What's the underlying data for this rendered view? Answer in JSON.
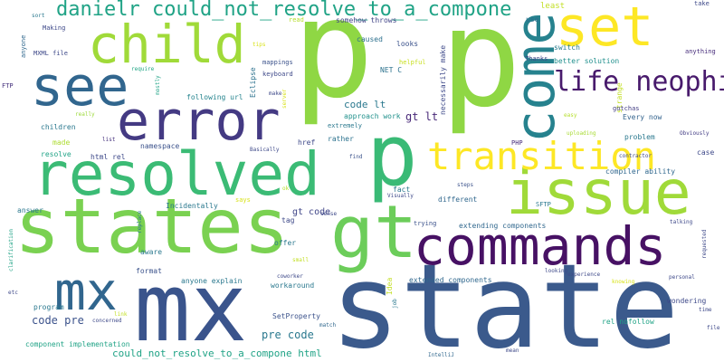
{
  "words": [
    {
      "id": "p1",
      "text": "p",
      "color": "#8fd744"
    },
    {
      "id": "p2",
      "text": "p",
      "color": "#8fd744"
    },
    {
      "id": "p3",
      "text": "p",
      "color": "#3aba76"
    },
    {
      "id": "state",
      "text": "state",
      "color": "#3b5a8c"
    },
    {
      "id": "mx_big",
      "text": "mx",
      "color": "#3a548c"
    },
    {
      "id": "states",
      "text": "states",
      "color": "#7ad151"
    },
    {
      "id": "gt_big",
      "text": "gt",
      "color": "#6ccd5a"
    },
    {
      "id": "commands",
      "text": "commands",
      "color": "#471164"
    },
    {
      "id": "resolved",
      "text": "resolved",
      "color": "#3bbb75"
    },
    {
      "id": "issue",
      "text": "issue",
      "color": "#a0da39"
    },
    {
      "id": "error",
      "text": "error",
      "color": "#443a83"
    },
    {
      "id": "see",
      "text": "see",
      "color": "#31668e"
    },
    {
      "id": "child",
      "text": "child",
      "color": "#a0da39"
    },
    {
      "id": "set",
      "text": "set",
      "color": "#fde725"
    },
    {
      "id": "come",
      "text": "come",
      "color": "#26828e"
    },
    {
      "id": "transition",
      "text": "transition",
      "color": "#fde725"
    },
    {
      "id": "life_neophi",
      "text": "life neophi",
      "color": "#481a6c"
    },
    {
      "id": "danielr",
      "text": "danielr could_not_resolve_to_a_compone",
      "color": "#20a386"
    },
    {
      "id": "mx_mid",
      "text": "mx",
      "color": "#31668e"
    },
    {
      "id": "code_lt",
      "text": "code lt",
      "color": "#2a788e"
    },
    {
      "id": "gt_lt",
      "text": "gt lt",
      "color": "#482878"
    },
    {
      "id": "gt_code",
      "text": "gt code",
      "color": "#404688"
    },
    {
      "id": "pre_code",
      "text": "pre code",
      "color": "#2a788e"
    },
    {
      "id": "code_pre",
      "text": "code pre",
      "color": "#3b528b"
    },
    {
      "id": "could_html",
      "text": "could_not_resolve_to_a_compone html",
      "color": "#20a386"
    },
    {
      "id": "kw_least",
      "text": "least",
      "color": "#c2df23"
    },
    {
      "id": "kw_use",
      "text": "use",
      "color": "#2e6e8e"
    },
    {
      "id": "kw_take",
      "text": "take",
      "color": "#3e4989"
    },
    {
      "id": "kw_anything",
      "text": "anything",
      "color": "#472d7b"
    },
    {
      "id": "kw_sort",
      "text": "sort",
      "color": "#2a788e"
    },
    {
      "id": "kw_anyone",
      "text": "anyone",
      "color": "#31688e"
    },
    {
      "id": "kw_making",
      "text": "Making",
      "color": "#3e4989"
    },
    {
      "id": "kw_mxml",
      "text": "MXML file",
      "color": "#3e4989"
    },
    {
      "id": "kw_ftp",
      "text": "FTP",
      "color": "#46327e"
    },
    {
      "id": "kw_read",
      "text": "read",
      "color": "#b5de2b"
    },
    {
      "id": "kw_somehow",
      "text": "somehow throws",
      "color": "#414487"
    },
    {
      "id": "kw_caused",
      "text": "caused",
      "color": "#2d708e"
    },
    {
      "id": "kw_looks",
      "text": "looks",
      "color": "#3b528b"
    },
    {
      "id": "kw_switch",
      "text": "switch",
      "color": "#287c8e"
    },
    {
      "id": "kw_thanks",
      "text": "Thanks",
      "color": "#3f4889"
    },
    {
      "id": "kw_better",
      "text": "better solution",
      "color": "#21908d"
    },
    {
      "id": "kw_tips",
      "text": "tips",
      "color": "#d8e219"
    },
    {
      "id": "kw_mappings",
      "text": "mappings",
      "color": "#3b528b"
    },
    {
      "id": "kw_keyboard",
      "text": "keyboard",
      "color": "#3e4989"
    },
    {
      "id": "kw_helpful",
      "text": "helpful",
      "color": "#c8e020"
    },
    {
      "id": "kw_netc",
      "text": "NET C",
      "color": "#2c728e"
    },
    {
      "id": "kw_require",
      "text": "require",
      "color": "#21a685"
    },
    {
      "id": "kw_following",
      "text": "following url",
      "color": "#25848e"
    },
    {
      "id": "kw_make",
      "text": "make",
      "color": "#3e4989"
    },
    {
      "id": "kw_eclipse",
      "text": "Eclipse",
      "color": "#2c728e"
    },
    {
      "id": "kw_server",
      "text": "server",
      "color": "#d8e219"
    },
    {
      "id": "kw_necessarily",
      "text": "necessarily make",
      "color": "#3e4989"
    },
    {
      "id": "kw_strange",
      "text": "strange",
      "color": "#c2df23"
    },
    {
      "id": "kw_gotchas",
      "text": "gotchas",
      "color": "#433d84"
    },
    {
      "id": "kw_easy",
      "text": "easy",
      "color": "#b5de2b"
    },
    {
      "id": "kw_everynow",
      "text": "Every now",
      "color": "#33638d"
    },
    {
      "id": "kw_obviously",
      "text": "Obviously",
      "color": "#433d84"
    },
    {
      "id": "kw_mostly",
      "text": "mostly",
      "color": "#20a386"
    },
    {
      "id": "kw_really",
      "text": "really",
      "color": "#9dd93b"
    },
    {
      "id": "kw_extremely",
      "text": "extremely",
      "color": "#2a788e"
    },
    {
      "id": "kw_approach",
      "text": "approach work",
      "color": "#21918c"
    },
    {
      "id": "kw_children",
      "text": "children",
      "color": "#2a788e"
    },
    {
      "id": "kw_list",
      "text": "list",
      "color": "#46327e"
    },
    {
      "id": "kw_namespace",
      "text": "namespace",
      "color": "#3b528b"
    },
    {
      "id": "kw_rather",
      "text": "rather",
      "color": "#2c728e"
    },
    {
      "id": "kw_uploading",
      "text": "uploading",
      "color": "#a8db34"
    },
    {
      "id": "kw_problem",
      "text": "problem",
      "color": "#2a788e"
    },
    {
      "id": "kw_php",
      "text": "PHP",
      "color": "#472d7b"
    },
    {
      "id": "kw_made",
      "text": "made",
      "color": "#addc30"
    },
    {
      "id": "kw_basically",
      "text": "Basically",
      "color": "#3e4989"
    },
    {
      "id": "kw_href",
      "text": "href",
      "color": "#3e4989"
    },
    {
      "id": "kw_contractor",
      "text": "contractor",
      "color": "#3e4989"
    },
    {
      "id": "kw_case",
      "text": "case",
      "color": "#3e4989"
    },
    {
      "id": "kw_resolve",
      "text": "resolve",
      "color": "#20a386"
    },
    {
      "id": "kw_htmlrel",
      "text": "html rel",
      "color": "#3e4989"
    },
    {
      "id": "kw_find",
      "text": "find",
      "color": "#3b528b"
    },
    {
      "id": "kw_fact",
      "text": "fact",
      "color": "#2a788e"
    },
    {
      "id": "kw_compiler",
      "text": "compiler ability",
      "color": "#31688e"
    },
    {
      "id": "kw_steps",
      "text": "steps",
      "color": "#3b528b"
    },
    {
      "id": "kw_visually",
      "text": "Visually",
      "color": "#3e4989"
    },
    {
      "id": "kw_different",
      "text": "different",
      "color": "#31688e"
    },
    {
      "id": "kw_says",
      "text": "says",
      "color": "#d8e219"
    },
    {
      "id": "kw_ok",
      "text": "ok",
      "color": "#b5de2b"
    },
    {
      "id": "kw_incidentally",
      "text": "Incidentally",
      "color": "#2a788e"
    },
    {
      "id": "kw_answer",
      "text": "answer",
      "color": "#2a788e"
    },
    {
      "id": "kw_replace",
      "text": "replace",
      "color": "#2a788e"
    },
    {
      "id": "kw_sense",
      "text": "sense",
      "color": "#3e4989"
    },
    {
      "id": "kw_tag",
      "text": "tag",
      "color": "#3e4989"
    },
    {
      "id": "kw_sftp",
      "text": "SFTP",
      "color": "#2a788e"
    },
    {
      "id": "kw_trying",
      "text": "trying",
      "color": "#3b528b"
    },
    {
      "id": "kw_extending",
      "text": "extending components",
      "color": "#31688e"
    },
    {
      "id": "kw_talking",
      "text": "talking",
      "color": "#3e4989"
    },
    {
      "id": "kw_requested",
      "text": "requested",
      "color": "#3e4989"
    },
    {
      "id": "kw_aware",
      "text": "aware",
      "color": "#2a788e"
    },
    {
      "id": "kw_offer",
      "text": "offer",
      "color": "#2a788e"
    },
    {
      "id": "kw_small",
      "text": "small",
      "color": "#c2df23"
    },
    {
      "id": "kw_clarification",
      "text": "clarification",
      "color": "#20a386"
    },
    {
      "id": "kw_format",
      "text": "format",
      "color": "#3b528b"
    },
    {
      "id": "kw_coworker",
      "text": "coworker",
      "color": "#3e4989"
    },
    {
      "id": "kw_looking",
      "text": "looking",
      "color": "#3e4989"
    },
    {
      "id": "kw_experience",
      "text": "experience",
      "color": "#3e4989"
    },
    {
      "id": "kw_idea",
      "text": "Idea",
      "color": "#c2df23"
    },
    {
      "id": "kw_extended",
      "text": "extended components",
      "color": "#31688e"
    },
    {
      "id": "kw_knowing",
      "text": "knowing",
      "color": "#d8e219"
    },
    {
      "id": "kw_personal",
      "text": "personal",
      "color": "#3e4989"
    },
    {
      "id": "kw_anyoneexplain",
      "text": "anyone explain",
      "color": "#2a788e"
    },
    {
      "id": "kw_workaround",
      "text": "workaround",
      "color": "#2a788e"
    },
    {
      "id": "kw_etc",
      "text": "etc",
      "color": "#3e4989"
    },
    {
      "id": "kw_program",
      "text": "program",
      "color": "#2a788e"
    },
    {
      "id": "kw_job",
      "text": "job",
      "color": "#2a788e"
    },
    {
      "id": "kw_wondering",
      "text": "wondering",
      "color": "#3e4989"
    },
    {
      "id": "kw_setproperty",
      "text": "SetProperty",
      "color": "#3b528b"
    },
    {
      "id": "kw_time",
      "text": "time",
      "color": "#3e4989"
    },
    {
      "id": "kw_link",
      "text": "link",
      "color": "#c2df23"
    },
    {
      "id": "kw_concerned",
      "text": "concerned",
      "color": "#3e4989"
    },
    {
      "id": "kw_match",
      "text": "match",
      "color": "#31688e"
    },
    {
      "id": "kw_relnofollow",
      "text": "rel nofollow",
      "color": "#20a386"
    },
    {
      "id": "kw_file",
      "text": "file",
      "color": "#3e4989"
    },
    {
      "id": "kw_compimpl",
      "text": "component implementation",
      "color": "#20a386"
    },
    {
      "id": "kw_mean",
      "text": "mean",
      "color": "#3e4989"
    },
    {
      "id": "kw_intellij",
      "text": "IntelliJ",
      "color": "#31688e"
    }
  ]
}
